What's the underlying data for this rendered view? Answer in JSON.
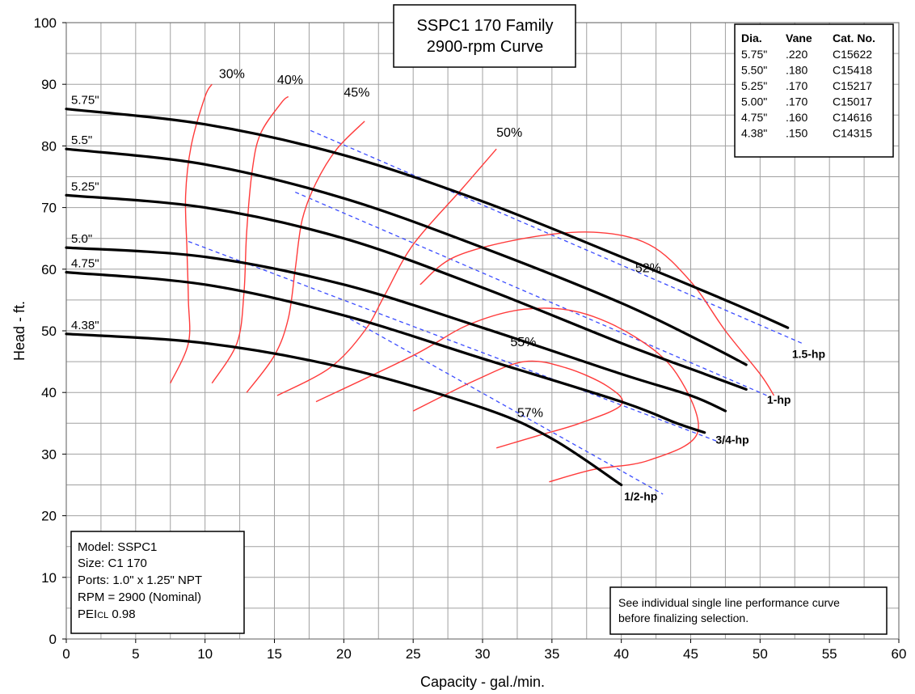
{
  "chart_data": {
    "type": "line",
    "title": [
      "SSPC1 170 Family",
      "2900-rpm Curve"
    ],
    "xlabel": "Capacity - gal./min.",
    "ylabel": "Head - ft.",
    "xlim": [
      0,
      60
    ],
    "ylim": [
      0,
      100
    ],
    "xticks": [
      0,
      5,
      10,
      15,
      20,
      25,
      30,
      35,
      40,
      45,
      50,
      55,
      60
    ],
    "yticks": [
      0,
      10,
      20,
      30,
      40,
      50,
      60,
      70,
      80,
      90,
      100
    ],
    "grid": true,
    "impeller_series": [
      {
        "name": "5.75\"",
        "points": [
          [
            0,
            86
          ],
          [
            10,
            83.5
          ],
          [
            20,
            78.5
          ],
          [
            30,
            71
          ],
          [
            40,
            62
          ],
          [
            48,
            54.5
          ],
          [
            52,
            50.5
          ]
        ]
      },
      {
        "name": "5.5\"",
        "points": [
          [
            0,
            79.5
          ],
          [
            10,
            77
          ],
          [
            20,
            71.5
          ],
          [
            30,
            63.5
          ],
          [
            40,
            54.5
          ],
          [
            46,
            48
          ],
          [
            49,
            44.5
          ]
        ]
      },
      {
        "name": "5.25\"",
        "points": [
          [
            0,
            72
          ],
          [
            10,
            70
          ],
          [
            20,
            65
          ],
          [
            30,
            57
          ],
          [
            40,
            48
          ],
          [
            46,
            43
          ],
          [
            49,
            40.5
          ]
        ]
      },
      {
        "name": "5.0\"",
        "points": [
          [
            0,
            63.5
          ],
          [
            10,
            62
          ],
          [
            20,
            57.5
          ],
          [
            30,
            50.5
          ],
          [
            40,
            43
          ],
          [
            45,
            39.5
          ],
          [
            47.5,
            37
          ]
        ]
      },
      {
        "name": "4.75\"",
        "points": [
          [
            0,
            59.5
          ],
          [
            10,
            57.5
          ],
          [
            20,
            52.5
          ],
          [
            30,
            45.5
          ],
          [
            40,
            38.5
          ],
          [
            44,
            35
          ],
          [
            46,
            33.5
          ]
        ]
      },
      {
        "name": "4.38\"",
        "points": [
          [
            0,
            49.5
          ],
          [
            10,
            48
          ],
          [
            20,
            44
          ],
          [
            30,
            37.5
          ],
          [
            35,
            32.5
          ],
          [
            40,
            25
          ]
        ]
      }
    ],
    "efficiency_series": [
      {
        "name": "30%",
        "label_at": [
          11,
          91
        ],
        "points": [
          [
            7.5,
            41.5
          ],
          [
            8.8,
            48
          ],
          [
            8.8,
            55
          ],
          [
            8.7,
            63
          ],
          [
            8.6,
            72
          ],
          [
            9,
            80
          ],
          [
            10,
            88
          ],
          [
            10.5,
            90
          ]
        ]
      },
      {
        "name": "40%",
        "label_at": [
          15.2,
          90
        ],
        "points": [
          [
            10.5,
            41.5
          ],
          [
            12.3,
            48
          ],
          [
            12.8,
            56
          ],
          [
            13,
            66
          ],
          [
            13.4,
            76
          ],
          [
            14,
            82
          ],
          [
            15.5,
            87
          ],
          [
            16,
            88
          ]
        ]
      },
      {
        "name": "45%",
        "label_at": [
          20,
          88
        ],
        "points": [
          [
            13,
            40
          ],
          [
            15,
            46
          ],
          [
            16,
            52
          ],
          [
            16.5,
            60
          ],
          [
            17,
            68
          ],
          [
            18,
            74
          ],
          [
            19.5,
            79.5
          ],
          [
            21.5,
            84
          ]
        ]
      },
      {
        "name": "50%",
        "label_at": [
          31,
          81.5
        ],
        "points": [
          [
            15.2,
            39.5
          ],
          [
            19,
            44
          ],
          [
            21.5,
            50
          ],
          [
            23,
            56
          ],
          [
            25,
            64
          ],
          [
            28.5,
            73
          ],
          [
            31,
            79.5
          ]
        ]
      },
      {
        "name": "52%",
        "label_at": [
          41,
          59.5
        ],
        "points": [
          [
            25.5,
            57.5
          ],
          [
            28,
            62
          ],
          [
            33,
            65
          ],
          [
            38,
            66
          ],
          [
            42,
            64
          ],
          [
            45,
            58
          ],
          [
            47.5,
            50
          ],
          [
            50,
            43
          ],
          [
            51,
            39.5
          ]
        ]
      },
      {
        "name": "55%",
        "label_at": [
          32,
          47.5
        ],
        "points": [
          [
            18,
            38.5
          ],
          [
            25,
            46
          ],
          [
            29,
            51
          ],
          [
            33,
            53.5
          ],
          [
            37,
            53
          ],
          [
            41,
            49
          ],
          [
            44,
            43
          ],
          [
            45.5,
            33.5
          ],
          [
            42,
            29
          ],
          [
            38,
            27.5
          ],
          [
            34.8,
            25.5
          ]
        ]
      },
      {
        "name": "57%",
        "label_at": [
          32.5,
          36
        ],
        "points": [
          [
            25,
            37
          ],
          [
            29.5,
            42
          ],
          [
            33,
            45
          ],
          [
            36,
            44
          ],
          [
            39,
            41
          ],
          [
            40,
            38
          ],
          [
            37,
            35
          ],
          [
            34,
            33
          ],
          [
            31,
            31
          ]
        ]
      }
    ],
    "hp_series": [
      {
        "name": "1.5-hp",
        "label_at": [
          52.3,
          45.6
        ],
        "points": [
          [
            17.6,
            82.5
          ],
          [
            53,
            48
          ]
        ]
      },
      {
        "name": "1-hp",
        "label_at": [
          50.5,
          38.2
        ],
        "points": [
          [
            16.5,
            72.5
          ],
          [
            50.5,
            39.5
          ]
        ]
      },
      {
        "name": "3/4-hp",
        "label_at": [
          46.8,
          31.7
        ],
        "points": [
          [
            8.8,
            64.5
          ],
          [
            47,
            32
          ]
        ]
      },
      {
        "name": "1/2-hp",
        "label_at": [
          40.2,
          22.5
        ],
        "points": [
          [
            20,
            52.5
          ],
          [
            43,
            23.5
          ]
        ]
      }
    ],
    "impeller_table": {
      "headers": [
        "Dia.",
        "Vane",
        "Cat. No."
      ],
      "rows": [
        [
          "5.75\"",
          ".220",
          "C15622"
        ],
        [
          "5.50\"",
          ".180",
          "C15418"
        ],
        [
          "5.25\"",
          ".170",
          "C15217"
        ],
        [
          "5.00\"",
          ".170",
          "C15017"
        ],
        [
          "4.75\"",
          ".160",
          "C14616"
        ],
        [
          "4.38\"",
          ".150",
          "C14315"
        ]
      ]
    },
    "info_box": {
      "line1": "Model: SSPC1",
      "line2": "Size: C1 170",
      "line3": "Ports: 1.0\" x 1.25\" NPT",
      "line4": "RPM = 2900 (Nominal)",
      "pei_main": "PEI",
      "pei_sub": "CL",
      "pei_value": " 0.98"
    },
    "note": [
      "See individual single line performance curve",
      "before finalizing selection."
    ]
  },
  "colors": {
    "impeller": "#000000",
    "efficiency": "#ff3b3b",
    "hp": "#3b4cff",
    "grid": "#a0a0a0"
  }
}
